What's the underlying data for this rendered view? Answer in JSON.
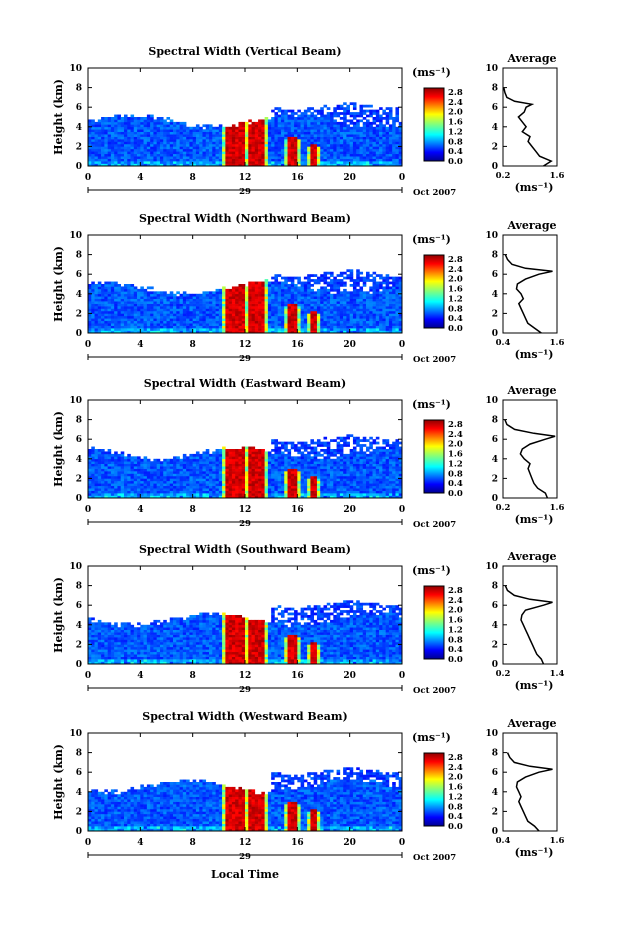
{
  "chart_data": {
    "type": "heatmap",
    "x_label": "Local Time",
    "date_labels": [
      "29",
      "Oct 2007"
    ],
    "x_ticks": [
      "0",
      "4",
      "8",
      "12",
      "16",
      "20",
      "0"
    ],
    "x_range": [
      0,
      24
    ],
    "y_ticks": [
      "0",
      "2",
      "4",
      "6",
      "8",
      "10"
    ],
    "y_range": [
      0,
      10
    ],
    "y_label": "Height (km)",
    "colorbar": {
      "unit": "(ms⁻¹)",
      "ticks": [
        "2.8",
        "2.4",
        "2.0",
        "1.6",
        "1.2",
        "0.8",
        "0.4",
        "0.0"
      ]
    },
    "profile_title": "Average",
    "profile_unit": "(ms⁻¹)",
    "panels": [
      {
        "title": "Spectral Width (Vertical Beam)",
        "profile_xticks": [
          "0.2",
          "1.6"
        ],
        "profile_xlim": [
          0.2,
          1.6
        ],
        "profile": [
          [
            0.0,
            1.25
          ],
          [
            0.5,
            1.45
          ],
          [
            1.0,
            1.15
          ],
          [
            1.5,
            1.05
          ],
          [
            2.0,
            0.95
          ],
          [
            2.5,
            0.85
          ],
          [
            3.0,
            0.9
          ],
          [
            3.5,
            0.7
          ],
          [
            4.0,
            0.8
          ],
          [
            4.5,
            0.7
          ],
          [
            5.0,
            0.6
          ],
          [
            5.5,
            0.75
          ],
          [
            6.0,
            0.8
          ],
          [
            6.3,
            0.95
          ],
          [
            6.6,
            0.5
          ],
          [
            7.0,
            0.3
          ],
          [
            7.5,
            0.25
          ],
          [
            8.0,
            0.22
          ]
        ]
      },
      {
        "title": "Spectral Width (Northward Beam)",
        "profile_xticks": [
          "0.4",
          "1.6"
        ],
        "profile_xlim": [
          0.4,
          1.6
        ],
        "profile": [
          [
            0.0,
            1.25
          ],
          [
            0.5,
            1.1
          ],
          [
            1.0,
            0.95
          ],
          [
            1.5,
            0.9
          ],
          [
            2.0,
            0.85
          ],
          [
            2.5,
            0.8
          ],
          [
            3.0,
            0.75
          ],
          [
            3.5,
            0.85
          ],
          [
            4.0,
            0.8
          ],
          [
            4.5,
            0.7
          ],
          [
            5.0,
            0.72
          ],
          [
            5.5,
            0.9
          ],
          [
            6.0,
            1.2
          ],
          [
            6.3,
            1.5
          ],
          [
            6.6,
            0.9
          ],
          [
            7.0,
            0.6
          ],
          [
            7.5,
            0.5
          ],
          [
            8.0,
            0.45
          ]
        ]
      },
      {
        "title": "Spectral Width (Eastward Beam)",
        "profile_xticks": [
          "0.2",
          "1.6"
        ],
        "profile_xlim": [
          0.2,
          1.6
        ],
        "profile": [
          [
            0.0,
            1.35
          ],
          [
            0.5,
            1.3
          ],
          [
            1.0,
            1.1
          ],
          [
            1.5,
            1.0
          ],
          [
            2.0,
            0.95
          ],
          [
            2.5,
            0.9
          ],
          [
            3.0,
            0.85
          ],
          [
            3.5,
            0.9
          ],
          [
            4.0,
            0.75
          ],
          [
            4.5,
            0.65
          ],
          [
            5.0,
            0.7
          ],
          [
            5.5,
            0.9
          ],
          [
            6.0,
            1.3
          ],
          [
            6.3,
            1.55
          ],
          [
            6.6,
            1.0
          ],
          [
            7.0,
            0.5
          ],
          [
            7.5,
            0.3
          ],
          [
            8.0,
            0.25
          ]
        ]
      },
      {
        "title": "Spectral Width (Southward Beam)",
        "profile_xticks": [
          "0.2",
          "1.4"
        ],
        "profile_xlim": [
          0.2,
          1.4
        ],
        "profile": [
          [
            0.0,
            1.1
          ],
          [
            0.5,
            1.05
          ],
          [
            1.0,
            0.95
          ],
          [
            1.5,
            0.9
          ],
          [
            2.0,
            0.85
          ],
          [
            2.5,
            0.8
          ],
          [
            3.0,
            0.75
          ],
          [
            3.5,
            0.7
          ],
          [
            4.0,
            0.65
          ],
          [
            4.5,
            0.6
          ],
          [
            5.0,
            0.62
          ],
          [
            5.5,
            0.7
          ],
          [
            6.0,
            1.1
          ],
          [
            6.3,
            1.3
          ],
          [
            6.6,
            0.8
          ],
          [
            7.0,
            0.45
          ],
          [
            7.5,
            0.3
          ],
          [
            8.0,
            0.25
          ]
        ]
      },
      {
        "title": "Spectral Width (Westward Beam)",
        "profile_xticks": [
          "0.4",
          "1.6"
        ],
        "profile_xlim": [
          0.4,
          1.6
        ],
        "profile": [
          [
            0.0,
            1.2
          ],
          [
            0.5,
            1.1
          ],
          [
            1.0,
            0.95
          ],
          [
            1.5,
            0.9
          ],
          [
            2.0,
            0.85
          ],
          [
            2.5,
            0.8
          ],
          [
            3.0,
            0.75
          ],
          [
            3.5,
            0.8
          ],
          [
            4.0,
            0.75
          ],
          [
            4.5,
            0.7
          ],
          [
            5.0,
            0.72
          ],
          [
            5.5,
            0.9
          ],
          [
            6.0,
            1.2
          ],
          [
            6.3,
            1.5
          ],
          [
            6.6,
            1.0
          ],
          [
            7.0,
            0.65
          ],
          [
            7.5,
            0.55
          ],
          [
            8.0,
            0.5
          ]
        ]
      }
    ]
  }
}
